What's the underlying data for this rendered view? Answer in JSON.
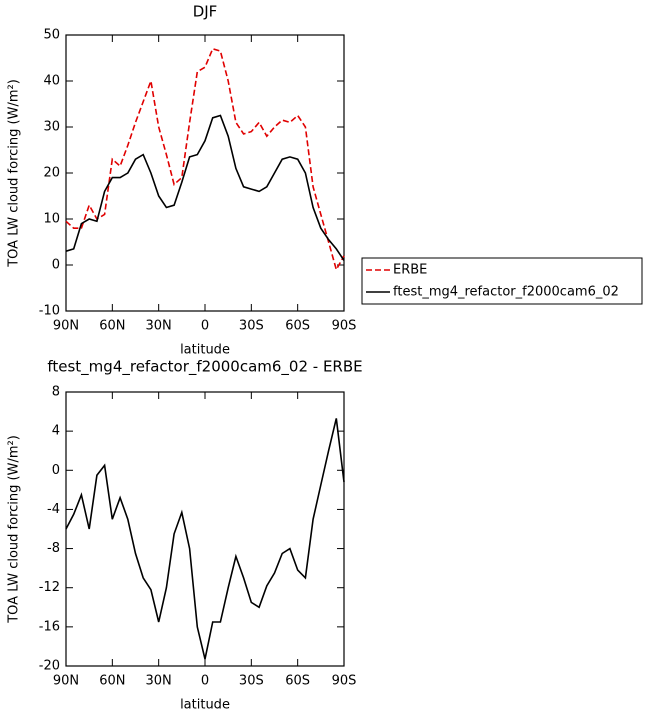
{
  "chart_data": [
    {
      "type": "line",
      "title": "DJF",
      "x_label": "latitude",
      "y_label": "TOA LW cloud forcing (W/m²)",
      "x": [
        90,
        85,
        80,
        75,
        70,
        65,
        60,
        55,
        50,
        45,
        40,
        35,
        30,
        25,
        20,
        15,
        10,
        5,
        0,
        -5,
        -10,
        -15,
        -20,
        -25,
        -30,
        -35,
        -40,
        -45,
        -50,
        -55,
        -60,
        -65,
        -70,
        -75,
        -80,
        -85,
        -90
      ],
      "xlim": [
        90,
        -90
      ],
      "xticks": [
        {
          "value": 90,
          "label": "90N"
        },
        {
          "value": 60,
          "label": "60N"
        },
        {
          "value": 30,
          "label": "30N"
        },
        0,
        {
          "value": -30,
          "label": "30S"
        },
        {
          "value": -60,
          "label": "60S"
        },
        {
          "value": -90,
          "label": "90S"
        }
      ],
      "ylim": [
        -10,
        50
      ],
      "yticks": [
        -10,
        0,
        10,
        20,
        30,
        40,
        50
      ],
      "series": [
        {
          "name": "ERBE",
          "color": "#e00000",
          "dash": true,
          "values": [
            9.5,
            8,
            8,
            13,
            10,
            11,
            23,
            21.5,
            26,
            31,
            35.5,
            40,
            30,
            24,
            17.5,
            19,
            31,
            42,
            43,
            47,
            46.5,
            40,
            31,
            28.5,
            29,
            31,
            28,
            30,
            31.5,
            31,
            32.5,
            30,
            17,
            11,
            5,
            -1,
            2
          ]
        },
        {
          "name": "ftest_mg4_refactor_f2000cam6_02",
          "color": "#000000",
          "dash": false,
          "values": [
            3,
            3.5,
            9,
            10,
            9.5,
            16,
            19,
            19,
            20,
            23,
            24,
            20,
            15,
            12.5,
            13,
            18,
            23.5,
            24,
            27,
            32,
            32.5,
            28,
            21,
            17,
            16.5,
            16,
            17,
            20,
            23,
            23.5,
            23,
            20,
            12.5,
            8,
            5.5,
            3.5,
            1
          ]
        }
      ],
      "legend": true
    },
    {
      "type": "line",
      "title": "ftest_mg4_refactor_f2000cam6_02 - ERBE",
      "x_label": "latitude",
      "y_label": "TOA LW cloud forcing (W/m²)",
      "x": [
        90,
        85,
        80,
        75,
        70,
        65,
        60,
        55,
        50,
        45,
        40,
        35,
        30,
        25,
        20,
        15,
        10,
        5,
        0,
        -5,
        -10,
        -15,
        -20,
        -25,
        -30,
        -35,
        -40,
        -45,
        -50,
        -55,
        -60,
        -65,
        -70,
        -75,
        -80,
        -85,
        -90
      ],
      "xlim": [
        90,
        -90
      ],
      "xticks": [
        {
          "value": 90,
          "label": "90N"
        },
        {
          "value": 60,
          "label": "60N"
        },
        {
          "value": 30,
          "label": "30N"
        },
        0,
        {
          "value": -30,
          "label": "30S"
        },
        {
          "value": -60,
          "label": "60S"
        },
        {
          "value": -90,
          "label": "90S"
        }
      ],
      "ylim": [
        -20,
        8
      ],
      "yticks": [
        -20,
        -16,
        -12,
        -8,
        -4,
        0,
        4,
        8
      ],
      "series": [
        {
          "color": "#000000",
          "dash": false,
          "values": [
            -6,
            -4.5,
            -2.5,
            -6,
            -0.5,
            0.5,
            -5,
            -2.8,
            -5,
            -8.5,
            -11,
            -12.2,
            -15.5,
            -12,
            -6.5,
            -4.3,
            -8,
            -16,
            -19.3,
            -15.5,
            -15.5,
            -12,
            -8.8,
            -11,
            -13.5,
            -14,
            -11.8,
            -10.5,
            -8.5,
            -8,
            -10.2,
            -11,
            -5,
            -1.5,
            2,
            5.3,
            -1.2
          ]
        }
      ],
      "legend": false
    }
  ]
}
